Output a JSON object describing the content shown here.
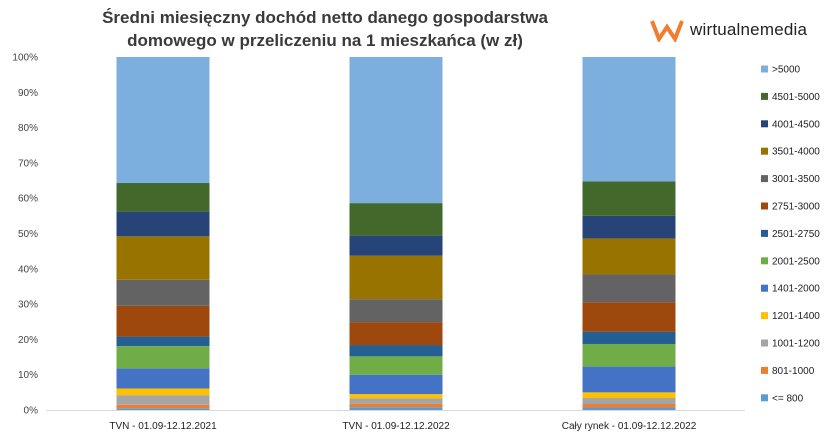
{
  "chart_data": {
    "type": "bar",
    "stacked": true,
    "title_lines": [
      "Średni miesięczny dochód netto danego gospodarstwa",
      "domowego w przeliczeniu na 1 mieszkańca (w zł)"
    ],
    "categories": [
      "TVN - 01.09-12.12.2021",
      "TVN - 01.09-12.12.2022",
      "Cały rynek - 01.09-12.12.2022"
    ],
    "ylim": [
      0,
      100
    ],
    "y_ticks": [
      "0%",
      "10%",
      "20%",
      "30%",
      "40%",
      "50%",
      "60%",
      "70%",
      "80%",
      "90%",
      "100%"
    ],
    "y_tick_values": [
      0,
      10,
      20,
      30,
      40,
      50,
      60,
      70,
      80,
      90,
      100
    ],
    "legend_position": "right",
    "grid": false,
    "series": [
      {
        "name": "<= 800",
        "color": "#5b9bd5",
        "values": [
          0.5,
          0.8,
          0.7
        ]
      },
      {
        "name": "801-1000",
        "color": "#ed7d31",
        "values": [
          1.0,
          1.0,
          1.0
        ]
      },
      {
        "name": "1001-1200",
        "color": "#a5a5a5",
        "values": [
          2.7,
          1.5,
          1.7
        ]
      },
      {
        "name": "1201-1400",
        "color": "#ffc000",
        "values": [
          1.9,
          1.2,
          1.6
        ]
      },
      {
        "name": "1401-2000",
        "color": "#4472c4",
        "values": [
          5.7,
          5.5,
          7.3
        ]
      },
      {
        "name": "2001-2500",
        "color": "#70ad47",
        "values": [
          6.3,
          5.2,
          6.4
        ]
      },
      {
        "name": "2501-2750",
        "color": "#255e91",
        "values": [
          2.7,
          3.2,
          3.5
        ]
      },
      {
        "name": "2751-3000",
        "color": "#9e480e",
        "values": [
          8.7,
          6.5,
          8.3
        ]
      },
      {
        "name": "3001-3500",
        "color": "#636363",
        "values": [
          7.4,
          6.5,
          7.9
        ]
      },
      {
        "name": "3501-4000",
        "color": "#997300",
        "values": [
          12.3,
          12.3,
          10.2
        ]
      },
      {
        "name": "4001-4500",
        "color": "#264478",
        "values": [
          7.0,
          5.7,
          6.4
        ]
      },
      {
        "name": "4501-5000",
        "color": "#43682b",
        "values": [
          8.1,
          9.2,
          9.8
        ]
      },
      {
        "name": ">5000",
        "color": "#7cafdd",
        "values": [
          35.7,
          41.4,
          35.2
        ]
      }
    ]
  },
  "logo": {
    "text": "wirtualnemedia",
    "accent": "#ef7e2e"
  }
}
